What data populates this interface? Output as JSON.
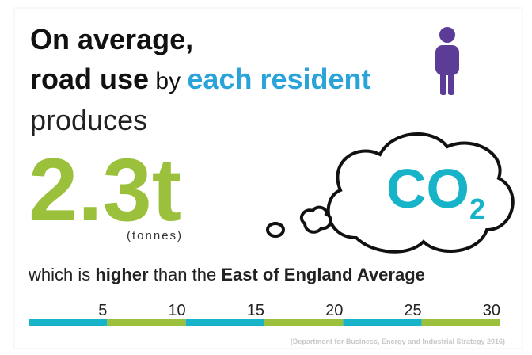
{
  "headline": {
    "line1": "On average,",
    "road_use": "road use",
    "by": " by ",
    "each_resident": "each resident",
    "produces": "produces"
  },
  "figure": {
    "amount": "2.3t",
    "unit": "(tonnes)",
    "gas": "CO",
    "subscript": "2"
  },
  "comparison": {
    "lead": "which is ",
    "higher": "higher",
    "middle": " than the ",
    "region": "East of England Average"
  },
  "scale": {
    "ticks": [
      5,
      10,
      15,
      20,
      25,
      30
    ]
  },
  "source": "(Department for Business, Energy and Industrial Strategy 2016)"
}
